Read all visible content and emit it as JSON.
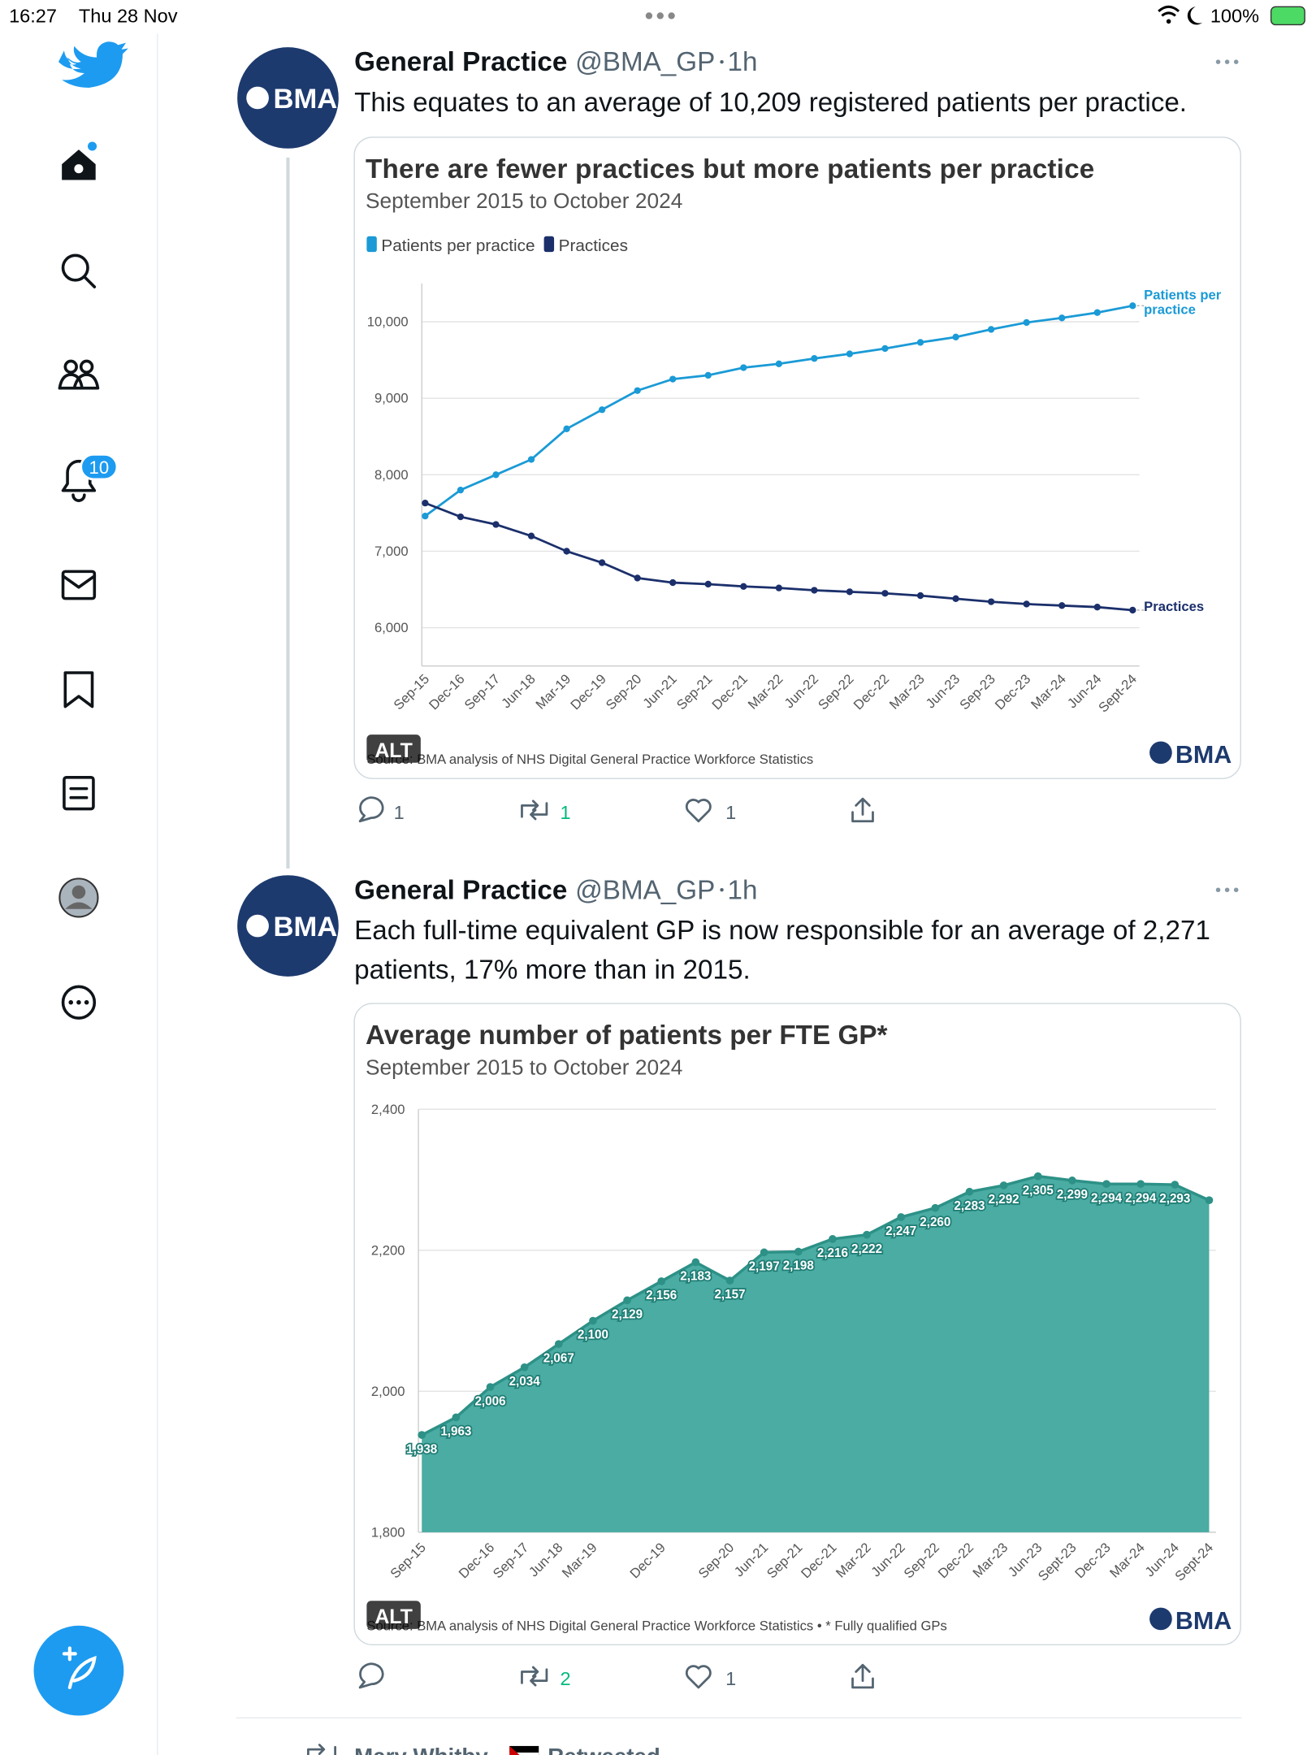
{
  "status_bar": {
    "time": "16:27",
    "date": "Thu 28 Nov",
    "battery": "100%"
  },
  "sidebar": {
    "notification_badge": "10"
  },
  "tweets": [
    {
      "author": "General Practice",
      "handle": "@BMA_GP",
      "time": "1h",
      "avatar": "BMA",
      "text_lines": [
        "This equates to an average of 10,209 registered patients per practice."
      ],
      "replies": "1",
      "retweets": "1",
      "likes": "1"
    },
    {
      "author": "General Practice",
      "handle": "@BMA_GP",
      "time": "1h",
      "avatar": "BMA",
      "text_lines": [
        "Each full-time equivalent GP is now responsible for an average of 2,271",
        "patients, 17% more than in 2015."
      ],
      "replies": null,
      "retweets": "2",
      "likes": "1"
    }
  ],
  "retweet_row": {
    "name": "Mary Whitby",
    "action": "Retweeted"
  },
  "chart_data": [
    {
      "type": "line",
      "title": "There are fewer practices but more patients per practice",
      "subtitle": "September 2015 to October 2024",
      "source": "Source: BMA analysis of NHS Digital General Practice Workforce Statistics",
      "alt": "ALT",
      "logo": "BMA",
      "legend": true,
      "grid": true,
      "categories": [
        "Sep-15",
        "Dec-16",
        "Sep-17",
        "Jun-18",
        "Mar-19",
        "Dec-19",
        "Sep-20",
        "Jun-21",
        "Sep-21",
        "Dec-21",
        "Mar-22",
        "Jun-22",
        "Sep-22",
        "Dec-22",
        "Mar-23",
        "Jun-23",
        "Sep-23",
        "Dec-23",
        "Mar-24",
        "Jun-24",
        "Sept-24"
      ],
      "series": [
        {
          "name": "Patients per practice",
          "color": "#1a9ad6",
          "values": [
            7460,
            7800,
            8000,
            8200,
            8600,
            8850,
            9100,
            9250,
            9300,
            9400,
            9450,
            9520,
            9580,
            9650,
            9730,
            9800,
            9900,
            9990,
            10050,
            10120,
            10209
          ]
        },
        {
          "name": "Practices",
          "color": "#1b2f6b",
          "values": [
            7630,
            7450,
            7350,
            7200,
            7000,
            6850,
            6650,
            6590,
            6570,
            6540,
            6520,
            6490,
            6470,
            6450,
            6420,
            6380,
            6340,
            6310,
            6290,
            6270,
            6230
          ]
        }
      ],
      "ylim": [
        5500,
        10500
      ],
      "yticks": [
        {
          "value": 6000,
          "label": "6,000"
        },
        {
          "value": 7000,
          "label": "7,000"
        },
        {
          "value": 8000,
          "label": "8,000"
        },
        {
          "value": 9000,
          "label": "9,000"
        },
        {
          "value": 10000,
          "label": "10,000"
        }
      ]
    },
    {
      "type": "area",
      "title": "Average number of patients per FTE GP*",
      "subtitle": "September 2015 to October 2024",
      "source": "Source: BMA analysis of NHS Digital General Practice Workforce Statistics • * Fully qualified GPs",
      "alt": "ALT",
      "logo": "BMA",
      "grid": true,
      "color": "#4aaca3",
      "categories": [
        "Sep-15",
        null,
        "Dec-16",
        "Sep-17",
        "Jun-18",
        "Mar-19",
        null,
        "Dec-19",
        null,
        "Sep-20",
        "Jun-21",
        "Sep-21",
        "Dec-21",
        "Mar-22",
        "Jun-22",
        "Sep-22",
        "Dec-22",
        "Mar-23",
        "Jun-23",
        "Sept-23",
        "Dec-23",
        "Mar-24",
        "Jun-24",
        "Sept-24"
      ],
      "values": [
        1938,
        1963,
        2006,
        2034,
        2067,
        2100,
        2129,
        2156,
        2183,
        2157,
        2197,
        2198,
        2216,
        2222,
        2247,
        2260,
        2283,
        2292,
        2305,
        2299,
        2294,
        2294,
        2293,
        2271
      ],
      "value_labels": [
        "1,938",
        "1,963",
        "2,006",
        "2,034",
        "2,067",
        "2,100",
        "2,129",
        "2,156",
        "2,183",
        "2,157",
        "2,197",
        "2,198",
        "2,216",
        "2,222",
        "2,247",
        "2,260",
        "2,283",
        "2,292",
        "2,305",
        "2,299",
        "2,294",
        "2,294",
        "2,293",
        null
      ],
      "ylim": [
        1800,
        2400
      ],
      "yticks": [
        {
          "value": 1800,
          "label": "1,800"
        },
        {
          "value": 2000,
          "label": "2,000"
        },
        {
          "value": 2200,
          "label": "2,200"
        },
        {
          "value": 2400,
          "label": "2,400"
        }
      ]
    }
  ]
}
